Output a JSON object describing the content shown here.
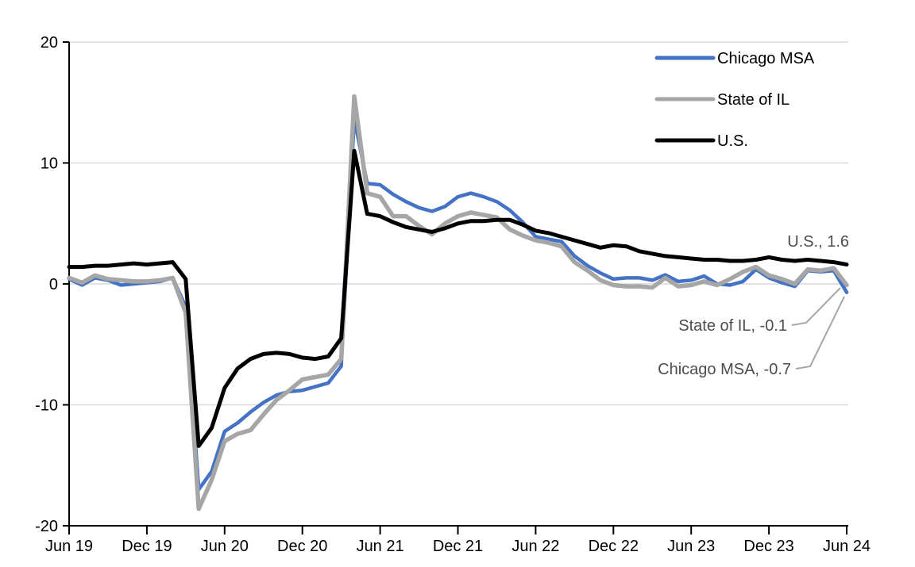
{
  "chart_data": {
    "type": "line",
    "title": "",
    "xlabel": "",
    "ylabel": "",
    "frequency": "monthly",
    "x_start": "Jun 2019",
    "x_end": "Jun 2024",
    "ylim": [
      -20,
      20
    ],
    "grid": "horizontal",
    "gridline_color": "#d9d9d9",
    "axis_color": "#000000",
    "legend_position": "top-right-inside",
    "x_tick_labels": [
      "Jun 19",
      "Dec 19",
      "Jun 20",
      "Dec 20",
      "Jun 21",
      "Dec 21",
      "Jun 22",
      "Dec 22",
      "Jun 23",
      "Dec 23",
      "Jun 24"
    ],
    "y_tick_labels": [
      "20",
      "10",
      "0",
      "-10",
      "-20"
    ],
    "y_tick_values": [
      20,
      10,
      0,
      -10,
      -20
    ],
    "series": [
      {
        "name": "Chicago MSA",
        "color": "#4472c4",
        "end_value": -0.7,
        "values": [
          0.4,
          -0.1,
          0.5,
          0.3,
          -0.1,
          0,
          0.1,
          0.2,
          0.5,
          -1.9,
          -17,
          -15.5,
          -12.2,
          -11.5,
          -10.6,
          -9.8,
          -9.2,
          -8.9,
          -8.8,
          -8.5,
          -8.2,
          -6.8,
          13.7,
          8.3,
          8.2,
          7.4,
          6.8,
          6.3,
          6,
          6.4,
          7.2,
          7.5,
          7.2,
          6.8,
          6.1,
          5.1,
          3.9,
          3.7,
          3.5,
          2.3,
          1.5,
          0.9,
          0.4,
          0.5,
          0.5,
          0.3,
          0.75,
          0.2,
          0.3,
          0.65,
          0,
          -0.1,
          0.2,
          1.2,
          0.5,
          0.1,
          -0.2,
          1.1,
          1,
          1.1,
          -0.7
        ]
      },
      {
        "name": "State of IL",
        "color": "#a6a6a6",
        "end_value": -0.1,
        "values": [
          0.5,
          0.1,
          0.7,
          0.4,
          0.3,
          0.2,
          0.2,
          0.3,
          0.5,
          -2.4,
          -18.6,
          -16.2,
          -13,
          -12.4,
          -12.1,
          -10.8,
          -9.6,
          -8.8,
          -7.9,
          -7.7,
          -7.5,
          -6.2,
          15.5,
          7.5,
          7.2,
          5.6,
          5.6,
          4.8,
          4.1,
          5,
          5.6,
          5.9,
          5.7,
          5.5,
          4.5,
          4,
          3.6,
          3.4,
          3.1,
          1.8,
          1.1,
          0.3,
          -0.1,
          -0.2,
          -0.2,
          -0.3,
          0.5,
          -0.2,
          -0.1,
          0.2,
          -0.1,
          0.4,
          1,
          1.4,
          0.7,
          0.4,
          0,
          1.2,
          1.1,
          1.3,
          -0.1
        ]
      },
      {
        "name": "U.S.",
        "color": "#000000",
        "end_value": 1.6,
        "values": [
          1.4,
          1.4,
          1.5,
          1.5,
          1.6,
          1.7,
          1.6,
          1.7,
          1.8,
          0.4,
          -13.4,
          -11.9,
          -8.6,
          -7,
          -6.2,
          -5.8,
          -5.7,
          -5.8,
          -6.1,
          -6.2,
          -6,
          -4.5,
          11,
          5.8,
          5.6,
          5.1,
          4.7,
          4.5,
          4.3,
          4.6,
          5,
          5.2,
          5.2,
          5.3,
          5.3,
          4.9,
          4.4,
          4.2,
          3.9,
          3.6,
          3.3,
          3,
          3.2,
          3.1,
          2.7,
          2.5,
          2.3,
          2.2,
          2.1,
          2,
          2,
          1.9,
          1.9,
          2,
          2.2,
          2,
          1.9,
          2,
          1.9,
          1.8,
          1.6
        ]
      }
    ],
    "annotations": [
      {
        "id": "us-end",
        "text": "U.S., 1.6",
        "color": "#4d4d4d",
        "leader": false,
        "series": 2
      },
      {
        "id": "il-end",
        "text": "State of IL, -0.1",
        "color": "#4d4d4d",
        "leader": true,
        "series": 1
      },
      {
        "id": "chicago-end",
        "text": "Chicago MSA, -0.7",
        "color": "#4d4d4d",
        "leader": true,
        "series": 0
      }
    ],
    "leader_line_color": "#a6a6a6"
  }
}
